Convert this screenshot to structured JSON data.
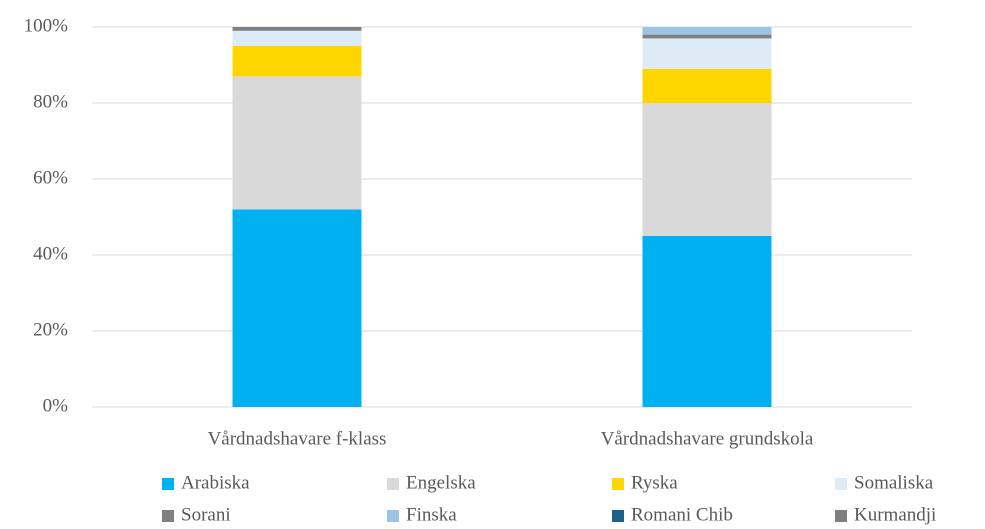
{
  "chart_data": {
    "type": "stacked_bar",
    "categories": [
      "Vårdnadshavare f-klass",
      "Vårdnadshavare grundskola"
    ],
    "series": [
      {
        "name": "Arabiska",
        "color": "#00b0f0",
        "values": [
          52,
          45
        ]
      },
      {
        "name": "Engelska",
        "color": "#d9d9d9",
        "values": [
          35,
          35
        ]
      },
      {
        "name": "Ryska",
        "color": "#ffd500",
        "values": [
          8,
          9
        ]
      },
      {
        "name": "Somaliska",
        "color": "#ddebf7",
        "values": [
          4,
          8
        ]
      },
      {
        "name": "Sorani",
        "color": "#808080",
        "values": [
          1,
          1
        ]
      },
      {
        "name": "Finska",
        "color": "#9dc3e6",
        "values": [
          0,
          2
        ]
      },
      {
        "name": "Romani Chib",
        "color": "#1f5f8b",
        "values": [
          0,
          0
        ]
      },
      {
        "name": "Kurmandji",
        "color": "#7f7f7f",
        "values": [
          0,
          0
        ]
      }
    ],
    "ylim": [
      0,
      100
    ],
    "yticks": [
      {
        "value": 0,
        "label": "0%"
      },
      {
        "value": 20,
        "label": "20%"
      },
      {
        "value": 40,
        "label": "40%"
      },
      {
        "value": 60,
        "label": "60%"
      },
      {
        "value": 80,
        "label": "80%"
      },
      {
        "value": 100,
        "label": "100%"
      }
    ],
    "grid": true,
    "legend": "bottom"
  }
}
